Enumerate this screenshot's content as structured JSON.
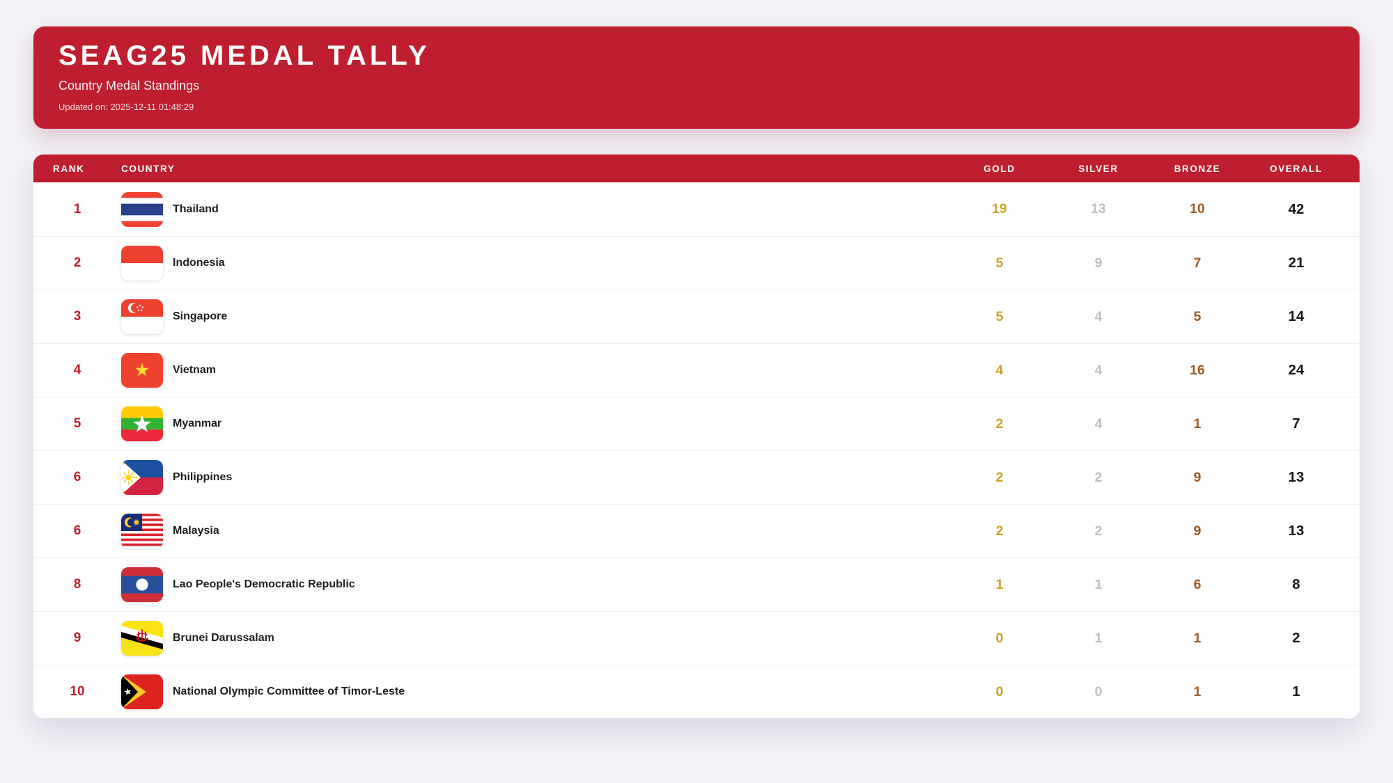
{
  "header": {
    "title": "SEAG25 MEDAL TALLY",
    "subtitle": "Country Medal Standings",
    "updated": "Updated on: 2025-12-11 01:48:29"
  },
  "table": {
    "columns": [
      "RANK",
      "COUNTRY",
      "GOLD",
      "SILVER",
      "BRONZE",
      "OVERALL"
    ],
    "rows": [
      {
        "rank": "1",
        "country": "Thailand",
        "flag": "thailand-flag-icon",
        "gold": "19",
        "silver": "13",
        "bronze": "10",
        "overall": "42"
      },
      {
        "rank": "2",
        "country": "Indonesia",
        "flag": "indonesia-flag-icon",
        "gold": "5",
        "silver": "9",
        "bronze": "7",
        "overall": "21"
      },
      {
        "rank": "3",
        "country": "Singapore",
        "flag": "singapore-flag-icon",
        "gold": "5",
        "silver": "4",
        "bronze": "5",
        "overall": "14"
      },
      {
        "rank": "4",
        "country": "Vietnam",
        "flag": "vietnam-flag-icon",
        "gold": "4",
        "silver": "4",
        "bronze": "16",
        "overall": "24"
      },
      {
        "rank": "5",
        "country": "Myanmar",
        "flag": "myanmar-flag-icon",
        "gold": "2",
        "silver": "4",
        "bronze": "1",
        "overall": "7"
      },
      {
        "rank": "6",
        "country": "Philippines",
        "flag": "philippines-flag-icon",
        "gold": "2",
        "silver": "2",
        "bronze": "9",
        "overall": "13"
      },
      {
        "rank": "6",
        "country": "Malaysia",
        "flag": "malaysia-flag-icon",
        "gold": "2",
        "silver": "2",
        "bronze": "9",
        "overall": "13"
      },
      {
        "rank": "8",
        "country": "Lao People's Democratic Republic",
        "flag": "laos-flag-icon",
        "gold": "1",
        "silver": "1",
        "bronze": "6",
        "overall": "8"
      },
      {
        "rank": "9",
        "country": "Brunei Darussalam",
        "flag": "brunei-flag-icon",
        "gold": "0",
        "silver": "1",
        "bronze": "1",
        "overall": "2"
      },
      {
        "rank": "10",
        "country": "National Olympic Committee of Timor-Leste",
        "flag": "timor-leste-flag-icon",
        "gold": "0",
        "silver": "0",
        "bronze": "1",
        "overall": "1"
      }
    ]
  },
  "colors": {
    "accent_red": "#BE1E2F",
    "gold": "#C9A22C",
    "silver": "#BFBFBF",
    "bronze": "#9E5A24",
    "overall_text": "#17171A",
    "page_bg": "#F2F1F6"
  }
}
